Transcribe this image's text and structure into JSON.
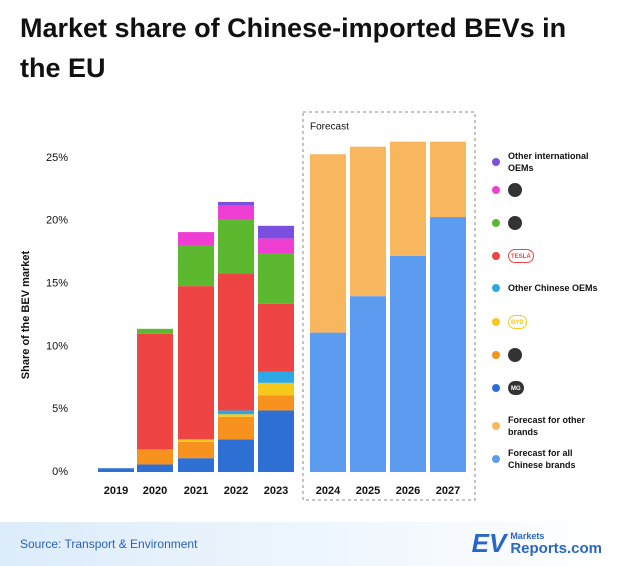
{
  "title": "Market share of Chinese-imported BEVs in the EU",
  "source": "Source: Transport & Environment",
  "logo": {
    "ev": "EV",
    "markets": "Markets",
    "reports": "Reports.com"
  },
  "chart_data": {
    "type": "stacked-bar",
    "y_label": "Share of the BEV market",
    "forecast_label": "Forecast",
    "categories": [
      "2019",
      "2020",
      "2021",
      "2022",
      "2023",
      "2024",
      "2025",
      "2026",
      "2027"
    ],
    "ylim": [
      0,
      27
    ],
    "yticks": [
      {
        "value": 0,
        "label": "0%"
      },
      {
        "value": 5,
        "label": "5%"
      },
      {
        "value": 10,
        "label": "10%"
      },
      {
        "value": 15,
        "label": "15%"
      },
      {
        "value": 20,
        "label": "20%"
      },
      {
        "value": 25,
        "label": "25%"
      }
    ],
    "grid": false,
    "series": [
      {
        "name": "MG",
        "color": "#2e6fd3",
        "values": [
          0.3,
          0.6,
          1.1,
          2.6,
          4.9,
          null,
          null,
          null,
          null
        ]
      },
      {
        "color": "#f7921e",
        "values": [
          null,
          1.2,
          1.3,
          1.8,
          1.2,
          null,
          null,
          null,
          null
        ]
      },
      {
        "name": "BYD",
        "color": "#f6c81c",
        "values": [
          null,
          null,
          0.2,
          0.2,
          1.0,
          null,
          null,
          null,
          null
        ]
      },
      {
        "name": "Other Chinese OEMs",
        "color": "#2ea8e2",
        "values": [
          null,
          null,
          null,
          0.3,
          0.9,
          null,
          null,
          null,
          null
        ]
      },
      {
        "name": "TESLA",
        "color": "#ef4444",
        "values": [
          null,
          9.2,
          12.2,
          10.9,
          5.4,
          null,
          null,
          null,
          null
        ]
      },
      {
        "color": "#5cb82e",
        "values": [
          null,
          0.4,
          3.2,
          4.3,
          4.0,
          null,
          null,
          null,
          null
        ]
      },
      {
        "color": "#ee3fd2",
        "values": [
          null,
          null,
          1.1,
          1.1,
          1.2,
          null,
          null,
          null,
          null
        ]
      },
      {
        "name": "Other international OEMs",
        "color": "#7a4fe0",
        "values": [
          null,
          null,
          null,
          0.3,
          1.0,
          null,
          null,
          null,
          null
        ]
      },
      {
        "name": "Forecast for all Chinese brands",
        "color": "#5b9cf0",
        "values": [
          null,
          null,
          null,
          null,
          null,
          11.1,
          14.0,
          17.2,
          20.3
        ]
      },
      {
        "name": "Forecast for other brands",
        "color": "#f8b65f",
        "values": [
          null,
          null,
          null,
          null,
          null,
          14.2,
          11.9,
          9.1,
          6.0
        ]
      }
    ]
  }
}
